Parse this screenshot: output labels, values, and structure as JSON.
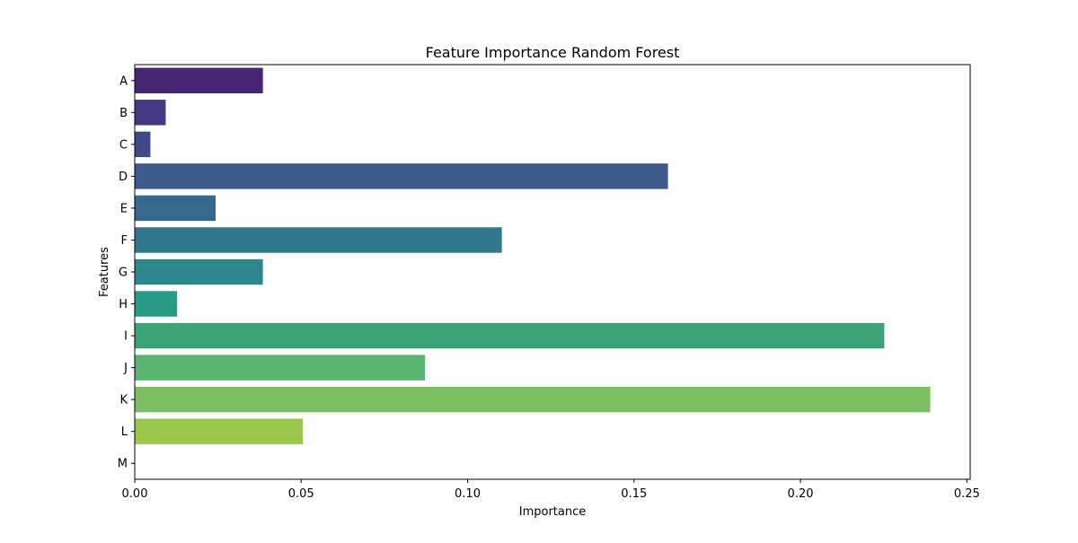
{
  "chart_data": {
    "type": "bar",
    "orientation": "horizontal",
    "title": "Feature Importance Random Forest",
    "xlabel": "Importance",
    "ylabel": "Features",
    "xlim": [
      0,
      0.251
    ],
    "xticks": [
      "0.00",
      "0.05",
      "0.10",
      "0.15",
      "0.20",
      "0.25"
    ],
    "xtick_values": [
      0,
      0.05,
      0.1,
      0.15,
      0.2,
      0.25
    ],
    "grid": false,
    "legend": "none",
    "categories": [
      "A",
      "B",
      "C",
      "D",
      "E",
      "F",
      "G",
      "H",
      "I",
      "J",
      "K",
      "L",
      "M"
    ],
    "values": [
      0.0385,
      0.0093,
      0.0047,
      0.1602,
      0.0243,
      0.1103,
      0.0385,
      0.0127,
      0.2252,
      0.0872,
      0.239,
      0.0505,
      0.0
    ],
    "colors": [
      "#482475",
      "#453781",
      "#3f4889",
      "#3e5a8c",
      "#35688d",
      "#31788e",
      "#2e878d",
      "#299a87",
      "#3ea278",
      "#5ab574",
      "#7bbf62",
      "#9ac64b",
      "#bcd438"
    ]
  }
}
